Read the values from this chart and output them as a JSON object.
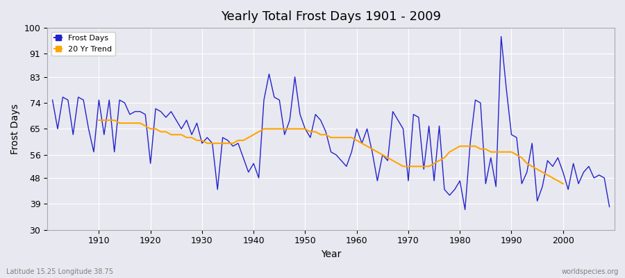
{
  "title": "Yearly Total Frost Days 1901 - 2009",
  "xlabel": "Year",
  "ylabel": "Frost Days",
  "lat_lon_label": "Latitude 15.25 Longitude 38.75",
  "watermark": "worldspecies.org",
  "line_color": "#2222cc",
  "trend_color": "#FFA500",
  "bg_color": "#e8e8f0",
  "grid_color": "#ffffff",
  "ylim": [
    30,
    100
  ],
  "yticks": [
    30,
    39,
    48,
    56,
    65,
    74,
    83,
    91,
    100
  ],
  "years": [
    1901,
    1902,
    1903,
    1904,
    1905,
    1906,
    1907,
    1908,
    1909,
    1910,
    1911,
    1912,
    1913,
    1914,
    1915,
    1916,
    1917,
    1918,
    1919,
    1920,
    1921,
    1922,
    1923,
    1924,
    1925,
    1926,
    1927,
    1928,
    1929,
    1930,
    1931,
    1932,
    1933,
    1934,
    1935,
    1936,
    1937,
    1938,
    1939,
    1940,
    1941,
    1942,
    1943,
    1944,
    1945,
    1946,
    1947,
    1948,
    1949,
    1950,
    1951,
    1952,
    1953,
    1954,
    1955,
    1956,
    1957,
    1958,
    1959,
    1960,
    1961,
    1962,
    1963,
    1964,
    1965,
    1966,
    1967,
    1968,
    1969,
    1970,
    1971,
    1972,
    1973,
    1974,
    1975,
    1976,
    1977,
    1978,
    1979,
    1980,
    1981,
    1982,
    1983,
    1984,
    1985,
    1986,
    1987,
    1988,
    1989,
    1990,
    1991,
    1992,
    1993,
    1994,
    1995,
    1996,
    1997,
    1998,
    1999,
    2000,
    2001,
    2002,
    2003,
    2004,
    2005,
    2006,
    2007,
    2008,
    2009
  ],
  "frost_days": [
    75,
    65,
    76,
    75,
    63,
    76,
    75,
    65,
    57,
    75,
    63,
    75,
    57,
    75,
    74,
    70,
    71,
    71,
    70,
    53,
    72,
    71,
    69,
    71,
    68,
    65,
    68,
    63,
    67,
    60,
    62,
    60,
    44,
    62,
    61,
    59,
    60,
    55,
    50,
    53,
    48,
    75,
    84,
    76,
    75,
    63,
    68,
    83,
    70,
    65,
    62,
    70,
    68,
    64,
    57,
    56,
    54,
    52,
    57,
    65,
    60,
    65,
    57,
    47,
    56,
    54,
    71,
    68,
    65,
    47,
    70,
    69,
    51,
    66,
    47,
    66,
    44,
    42,
    44,
    47,
    37,
    60,
    75,
    74,
    46,
    55,
    45,
    97,
    79,
    63,
    62,
    46,
    50,
    60,
    40,
    45,
    54,
    52,
    55,
    50,
    44,
    53,
    46,
    50,
    52,
    48,
    49,
    48,
    38
  ],
  "trend_values_years": [
    1910,
    1911,
    1912,
    1913,
    1914,
    1915,
    1916,
    1917,
    1918,
    1919,
    1920,
    1921,
    1922,
    1923,
    1924,
    1925,
    1926,
    1927,
    1928,
    1929,
    1930,
    1931,
    1932,
    1933,
    1934,
    1935,
    1936,
    1937,
    1938,
    1939,
    1940,
    1941,
    1942,
    1943,
    1944,
    1945,
    1946,
    1947,
    1948,
    1949,
    1950,
    1951,
    1952,
    1953,
    1954,
    1955,
    1956,
    1957,
    1958,
    1959,
    1960,
    1961,
    1962,
    1963,
    1964,
    1965,
    1966,
    1967,
    1968,
    1969,
    1970,
    1971,
    1972,
    1973,
    1974,
    1975,
    1976,
    1977,
    1978,
    1979,
    1980,
    1981,
    1982,
    1983,
    1984,
    1985,
    1986,
    1987,
    1988,
    1989,
    1990,
    1991,
    1992,
    1993,
    1994,
    1995,
    1996,
    1997,
    1998,
    1999,
    2000
  ],
  "trend_values": [
    68,
    68,
    68,
    68,
    67,
    67,
    67,
    67,
    67,
    66,
    65,
    65,
    64,
    64,
    63,
    63,
    63,
    62,
    62,
    61,
    61,
    60,
    60,
    60,
    60,
    60,
    60,
    61,
    61,
    62,
    63,
    64,
    65,
    65,
    65,
    65,
    65,
    65,
    65,
    65,
    65,
    64,
    64,
    63,
    63,
    62,
    62,
    62,
    62,
    62,
    61,
    60,
    59,
    58,
    57,
    56,
    55,
    54,
    53,
    52,
    52,
    52,
    52,
    52,
    52,
    53,
    54,
    55,
    57,
    58,
    59,
    59,
    59,
    59,
    58,
    58,
    57,
    57,
    57,
    57,
    57,
    56,
    55,
    53,
    52,
    51,
    50,
    49,
    48,
    47,
    46
  ]
}
